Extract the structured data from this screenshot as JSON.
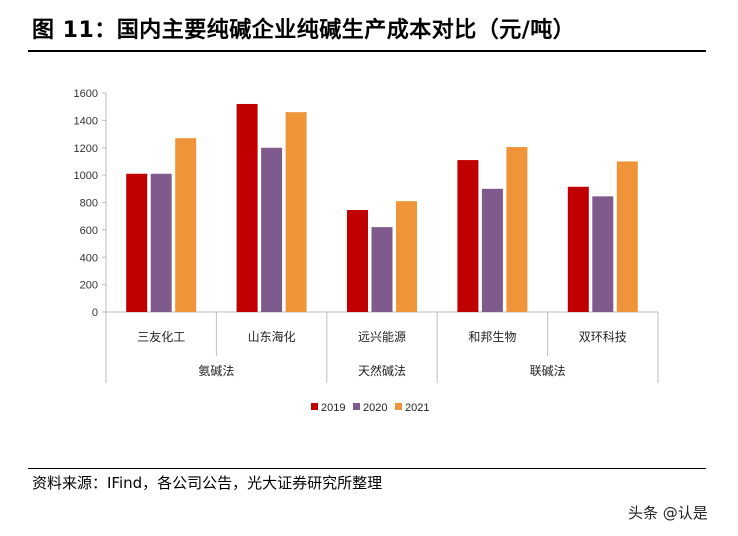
{
  "title": "图 11：国内主要纯碱企业纯碱生产成本对比（元/吨）",
  "source": "资料来源：IFind，各公司公告，光大证券研究所整理",
  "watermark": "头条 @认是",
  "chart_data": {
    "type": "bar",
    "categories": [
      "三友化工",
      "山东海化",
      "远兴能源",
      "和邦生物",
      "双环科技"
    ],
    "groups": [
      {
        "label": "氨碱法",
        "categories": [
          "三友化工",
          "山东海化"
        ]
      },
      {
        "label": "天然碱法",
        "categories": [
          "远兴能源"
        ]
      },
      {
        "label": "联碱法",
        "categories": [
          "和邦生物",
          "双环科技"
        ]
      }
    ],
    "series": [
      {
        "name": "2019",
        "color": "#C00000",
        "values": [
          1010,
          1520,
          745,
          1110,
          915
        ]
      },
      {
        "name": "2020",
        "color": "#7F5A8C",
        "values": [
          1010,
          1200,
          620,
          900,
          845
        ]
      },
      {
        "name": "2021",
        "color": "#F0943A",
        "values": [
          1270,
          1460,
          810,
          1205,
          1100
        ]
      }
    ],
    "ylim": [
      0,
      1600
    ],
    "yticks": [
      0,
      200,
      400,
      600,
      800,
      1000,
      1200,
      1400,
      1600
    ],
    "grid": false,
    "legend": "bottom"
  }
}
